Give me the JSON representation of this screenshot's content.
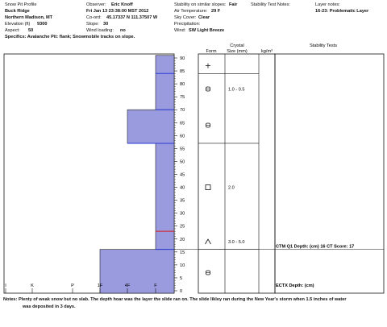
{
  "header": {
    "col1": {
      "title": "Snow Pit Profile",
      "location": "Buck Ridge",
      "region": "Northern Madison, MT",
      "elevation_label": "Elevation (ft)",
      "elevation_value": "9300",
      "aspect_label": "Aspect:",
      "aspect_value": "50",
      "specifics": "Specifics: Avalanche Pit: flank; Snowmobile tracks on slope."
    },
    "col2": {
      "observer_label": "Observer:",
      "observer_value": "Eric Knoff",
      "datetime": "Fri Jan 13 23:38:00 MST 2012",
      "coord_label": "Co-ord:",
      "coord_value": "45.17337 N 111.37507 W",
      "slope_label": "Slope:",
      "slope_value": "30",
      "wind_label": "Wind loading:",
      "wind_value": "no"
    },
    "col3": {
      "stability_label": "Stability on similar slopes:",
      "stability_value": "Fair",
      "air_temp_label": "Air Temperature:",
      "air_temp_value": "29 F",
      "sky_label": "Sky Cover:",
      "sky_value": "Clear",
      "precip_label": "Precipitation:",
      "precip_value": "",
      "wind_label": "Wind:",
      "wind_value": "SW Light Breeze"
    },
    "col4": {
      "stability_notes_label": "Stability Test Notes:"
    },
    "col5": {
      "layer_notes_label": "Layer notes:",
      "layer_notes_value": "16-23: Problematic Layer"
    }
  },
  "columns": {
    "crystal_title": "Crystal",
    "form": "Form",
    "size": "Size (mm)",
    "density": "kg/m³",
    "stability_tests": "Stability Tests"
  },
  "chart_data": {
    "type": "bar",
    "orientation": "horizontal",
    "description_axis_x": "hand hardness",
    "x_categories": [
      "I",
      "K",
      "P",
      "1F",
      "4F",
      "F"
    ],
    "y_axis_ticks": [
      0,
      5,
      10,
      15,
      20,
      25,
      30,
      35,
      40,
      45,
      50,
      55,
      60,
      65,
      70,
      75,
      80,
      85,
      90
    ],
    "ylim": [
      0,
      90
    ],
    "layers": [
      {
        "bottom": 0,
        "top": 16,
        "hardness": "1F"
      },
      {
        "bottom": 16,
        "top": 57,
        "hardness": "F"
      },
      {
        "bottom": 57,
        "top": 70,
        "hardness": "4F"
      },
      {
        "bottom": 70,
        "top": 91,
        "hardness": "F"
      }
    ],
    "layer_lines": [
      {
        "depth": 16,
        "color": "#2a3bd6"
      },
      {
        "depth": 23,
        "color": "#d32222"
      },
      {
        "depth": 57,
        "color": "#2a3bd6"
      },
      {
        "depth": 70,
        "color": "#2a3bd6"
      },
      {
        "depth": 84,
        "color": "#2a3bd6"
      }
    ],
    "crystal_boundaries": [
      16,
      57,
      84
    ],
    "crystals": [
      {
        "depth": 87,
        "form": "+",
        "size": ""
      },
      {
        "depth": 78,
        "form": "rounded",
        "size": "1.0 - 0.5"
      },
      {
        "depth": 64,
        "form": "rounded",
        "size": ""
      },
      {
        "depth": 40,
        "form": "square",
        "size": "2.0"
      },
      {
        "depth": 19,
        "form": "caret",
        "size": "3.0 - 5.0"
      },
      {
        "depth": 7,
        "form": "rounded",
        "size": ""
      }
    ],
    "stability_tests": [
      {
        "depth": 16,
        "label": "CTM Q1 Depth: (cm) 16 CT Score: 17"
      },
      {
        "depth": 1,
        "label": "ECTX  Depth: (cm)"
      }
    ],
    "colors": {
      "fill": "#9a9ade",
      "edge": "#3344cc",
      "red": "#d32222"
    }
  },
  "notes": {
    "label": "Notes:",
    "line1": "Plenty of weak snow but no slab. The depth hoar was the layer the slide ran on. The slide likley ran during the New Year's storm when 1.5 inches of water",
    "line2": "was deposited in 3 days."
  }
}
